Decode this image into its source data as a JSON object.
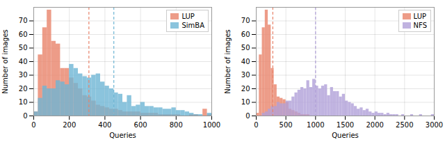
{
  "chart_data": [
    {
      "type": "histogram",
      "xlabel": "Queries",
      "ylabel": "Number of images",
      "bins": [
        0,
        25,
        50,
        75,
        100,
        125,
        150,
        175,
        200,
        225,
        250,
        275,
        300,
        325,
        350,
        375,
        400,
        425,
        450,
        475,
        500,
        525,
        550,
        575,
        600,
        625,
        650,
        675,
        700,
        725,
        750,
        775,
        800,
        825,
        850,
        875,
        900,
        925,
        950,
        975,
        1000
      ],
      "series": [
        {
          "name": "LUP",
          "color": "#E8836A",
          "values": [
            3,
            45,
            65,
            78,
            55,
            53,
            35,
            35,
            28,
            24,
            20,
            15,
            14,
            11,
            8,
            7,
            6,
            5,
            5,
            4,
            3,
            3,
            3,
            3,
            2,
            2,
            2,
            2,
            1,
            1,
            1,
            1,
            1,
            0,
            0,
            1,
            1,
            0,
            5,
            1
          ]
        },
        {
          "name": "SimBA",
          "color": "#6EB5D4",
          "values": [
            3,
            13,
            22,
            20,
            20,
            26,
            25,
            23,
            38,
            35,
            31,
            29,
            28,
            30,
            31,
            25,
            22,
            20,
            17,
            16,
            10,
            15,
            7,
            8,
            10,
            7,
            7,
            6,
            6,
            5,
            5,
            6,
            4,
            4,
            3,
            2,
            1,
            1,
            0,
            2
          ]
        }
      ],
      "vlines": [
        {
          "value": 310,
          "color": "#E8836A",
          "line_style": "dashed"
        },
        {
          "value": 450,
          "color": "#6EB5D4",
          "line_style": "dashed"
        }
      ],
      "xlim": [
        0,
        1000
      ],
      "ylim": [
        0,
        80
      ],
      "xticks": [
        0,
        200,
        400,
        600,
        800,
        1000
      ],
      "yticks": [
        0,
        10,
        20,
        30,
        40,
        50,
        60,
        70
      ],
      "grid": true,
      "legend": "upper right"
    },
    {
      "type": "histogram",
      "xlabel": "Queries",
      "ylabel": "Number of images",
      "bins": [
        0,
        50,
        100,
        150,
        200,
        250,
        300,
        350,
        400,
        450,
        500,
        550,
        600,
        650,
        700,
        750,
        800,
        850,
        900,
        950,
        1000,
        1050,
        1100,
        1150,
        1200,
        1250,
        1300,
        1350,
        1400,
        1450,
        1500,
        1550,
        1600,
        1650,
        1700,
        1750,
        1800,
        1850,
        1900,
        1950,
        2000,
        2050,
        2100,
        2150,
        2200,
        2250,
        2300,
        2350,
        2400,
        2450,
        2500,
        2550,
        2600,
        2650,
        2700,
        2750,
        2800,
        2850,
        2900,
        2950,
        3000
      ],
      "series": [
        {
          "name": "LUP",
          "color": "#E8836A",
          "values": [
            2,
            45,
            65,
            78,
            67,
            35,
            23,
            14,
            13,
            12,
            10,
            5,
            4,
            3,
            2,
            1,
            1,
            1,
            0,
            0,
            0,
            0,
            0,
            0,
            0,
            0,
            0,
            0,
            0,
            0,
            0,
            0,
            0,
            0,
            0,
            0,
            0,
            0,
            0,
            0,
            0,
            0,
            0,
            0,
            0,
            0,
            0,
            0,
            0,
            0,
            0,
            0,
            0,
            0,
            0,
            0,
            0,
            0,
            0,
            0
          ]
        },
        {
          "name": "NFS",
          "color": "#B0A0D8",
          "values": [
            0,
            0,
            2,
            3,
            5,
            7,
            7,
            10,
            9,
            9,
            11,
            11,
            14,
            17,
            19,
            21,
            20,
            26,
            21,
            27,
            22,
            20,
            22,
            23,
            15,
            21,
            18,
            18,
            14,
            16,
            11,
            10,
            9,
            7,
            5,
            6,
            4,
            5,
            3,
            2,
            3,
            2,
            2,
            1,
            2,
            1,
            1,
            1,
            0,
            1,
            0,
            0,
            1,
            0,
            0,
            1,
            0,
            0,
            0,
            1
          ]
        }
      ],
      "vlines": [
        {
          "value": 280,
          "color": "#E8836A",
          "line_style": "dashed"
        },
        {
          "value": 1000,
          "color": "#B0A0D8",
          "line_style": "dashed"
        }
      ],
      "xlim": [
        0,
        3000
      ],
      "ylim": [
        0,
        80
      ],
      "xticks": [
        0,
        500,
        1000,
        1500,
        2000,
        2500,
        3000
      ],
      "yticks": [
        0,
        10,
        20,
        30,
        40,
        50,
        60,
        70
      ],
      "grid": true,
      "legend": "upper right"
    }
  ]
}
